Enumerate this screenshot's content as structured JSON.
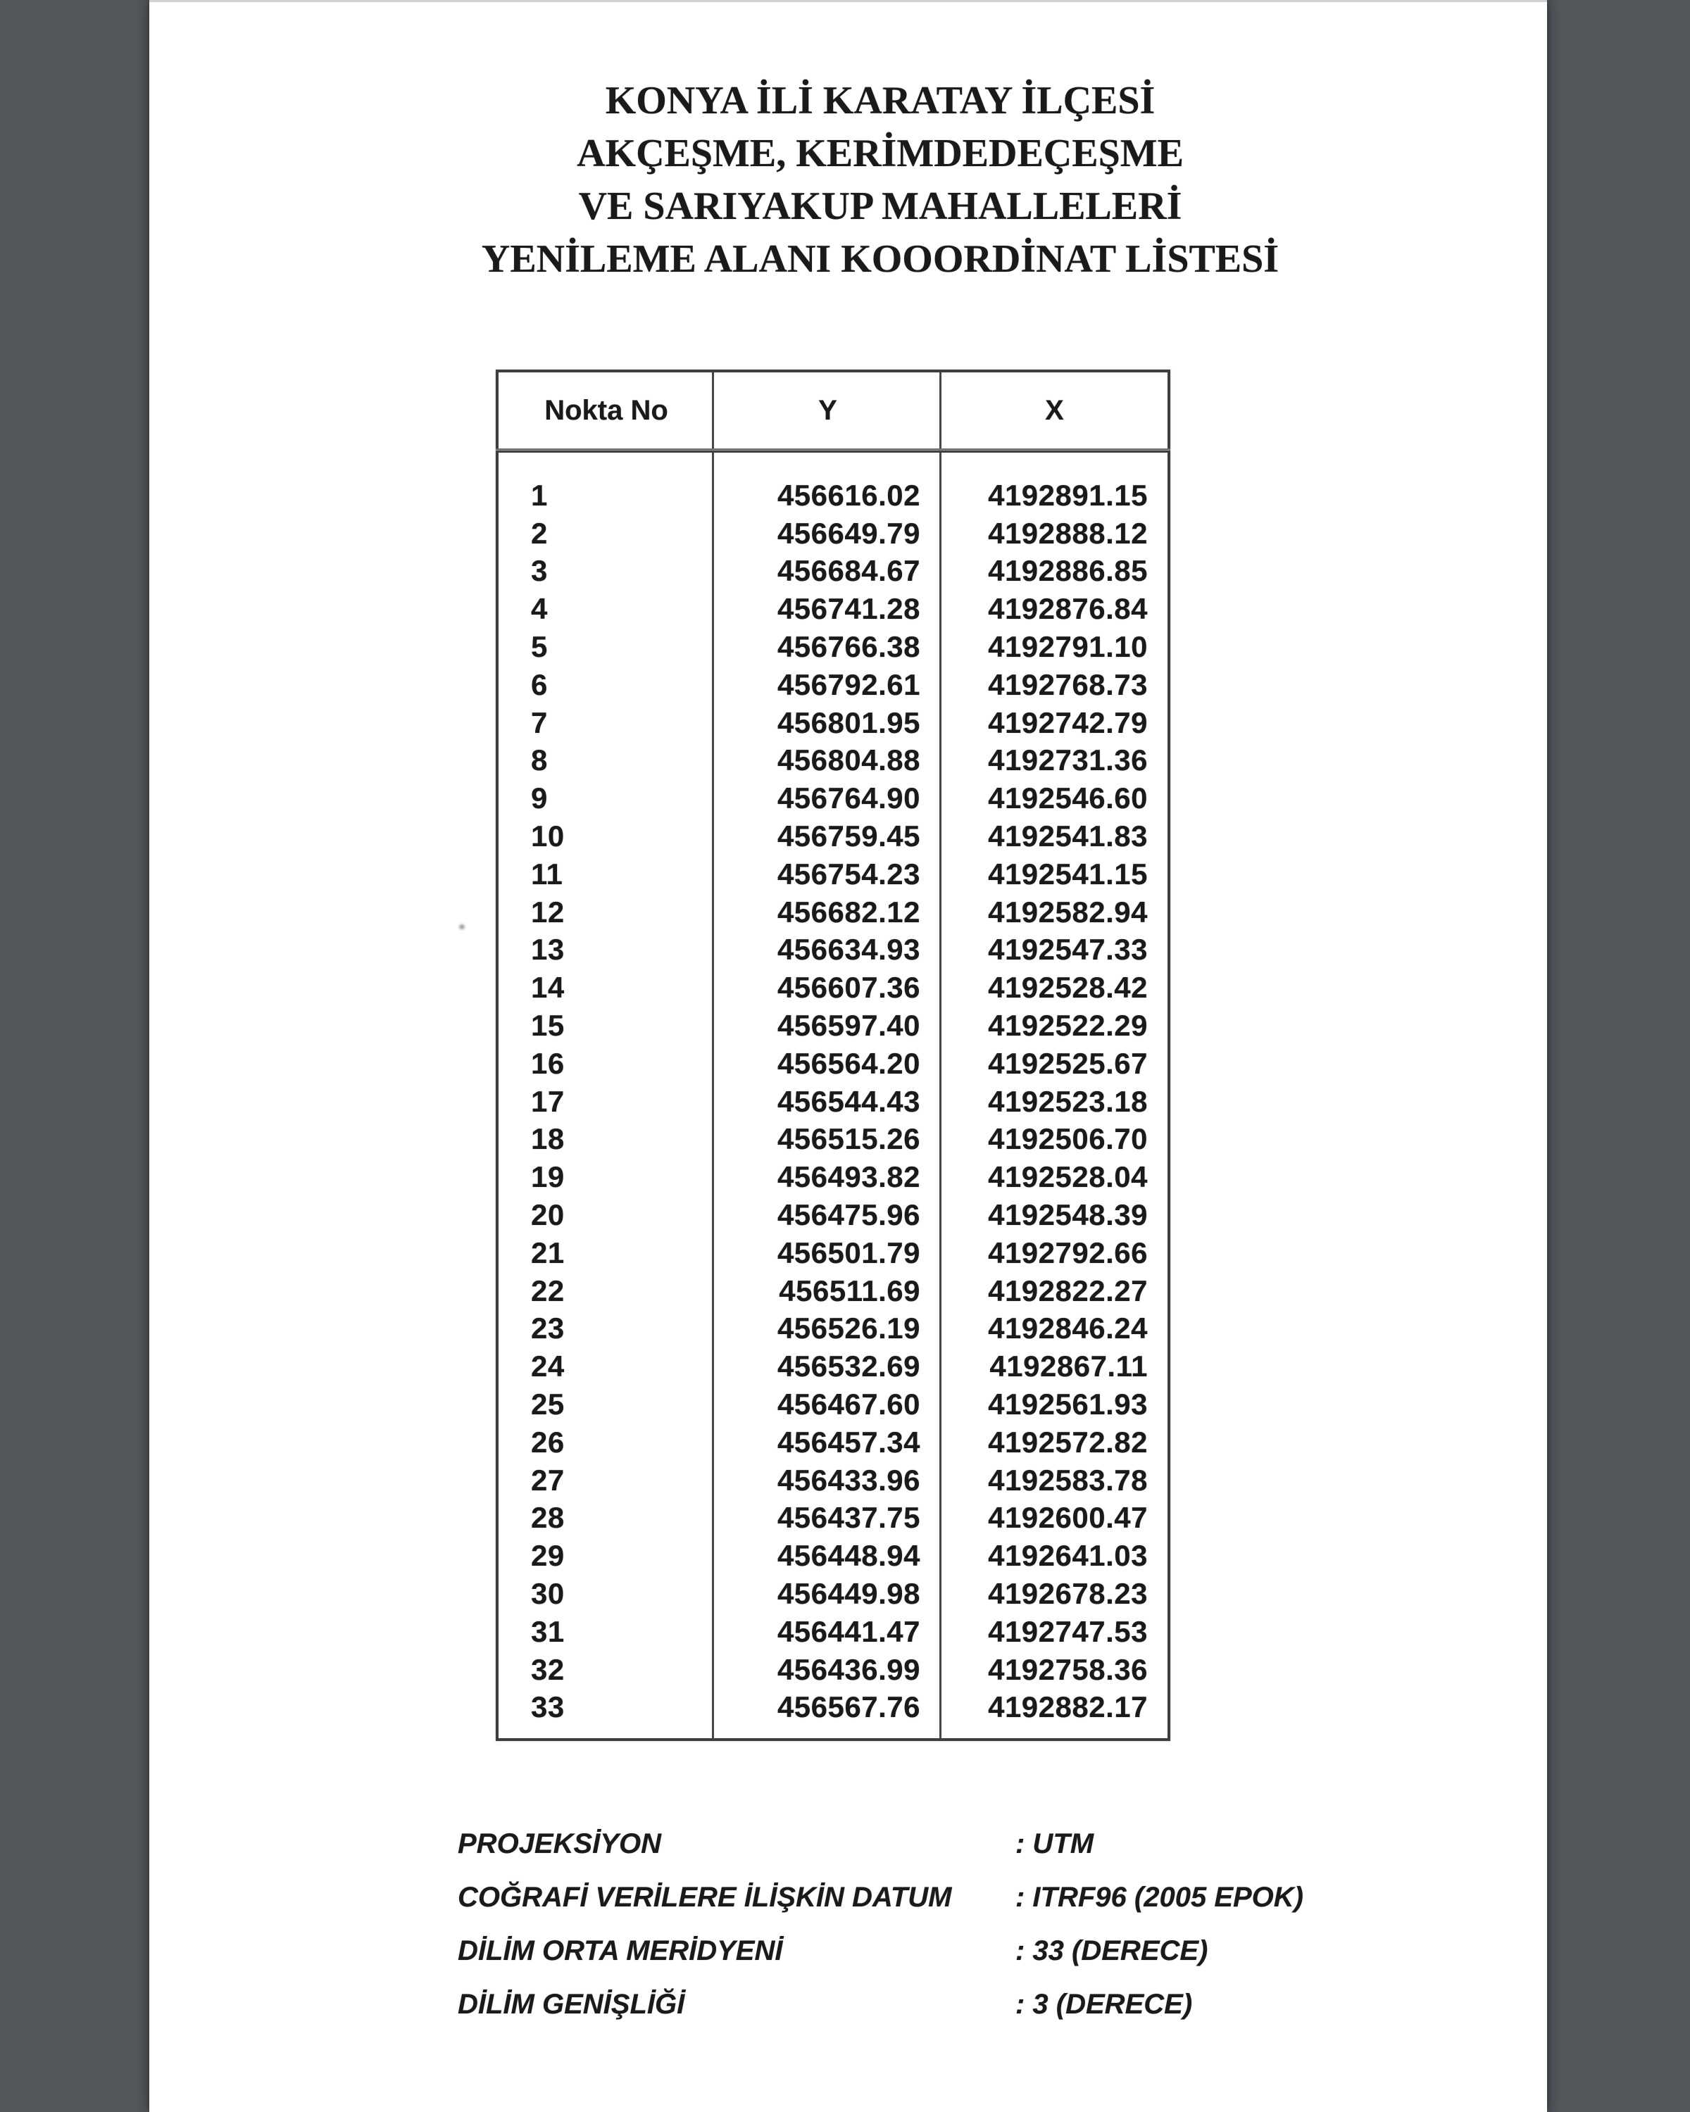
{
  "title": {
    "lines": [
      "KONYA İLİ KARATAY İLÇESİ",
      "AKÇEŞME, KERİMDEDEÇEŞME",
      "VE SARIYAKUP MAHALLELERİ",
      "YENİLEME ALANI KOOORDİNAT LİSTESİ"
    ]
  },
  "table": {
    "headers": [
      "Nokta No",
      "Y",
      "X"
    ],
    "rows": [
      {
        "no": "1",
        "y": "456616.02",
        "x": "4192891.15"
      },
      {
        "no": "2",
        "y": "456649.79",
        "x": "4192888.12"
      },
      {
        "no": "3",
        "y": "456684.67",
        "x": "4192886.85"
      },
      {
        "no": "4",
        "y": "456741.28",
        "x": "4192876.84"
      },
      {
        "no": "5",
        "y": "456766.38",
        "x": "4192791.10"
      },
      {
        "no": "6",
        "y": "456792.61",
        "x": "4192768.73"
      },
      {
        "no": "7",
        "y": "456801.95",
        "x": "4192742.79"
      },
      {
        "no": "8",
        "y": "456804.88",
        "x": "4192731.36"
      },
      {
        "no": "9",
        "y": "456764.90",
        "x": "4192546.60"
      },
      {
        "no": "10",
        "y": "456759.45",
        "x": "4192541.83"
      },
      {
        "no": "11",
        "y": "456754.23",
        "x": "4192541.15"
      },
      {
        "no": "12",
        "y": "456682.12",
        "x": "4192582.94"
      },
      {
        "no": "13",
        "y": "456634.93",
        "x": "4192547.33"
      },
      {
        "no": "14",
        "y": "456607.36",
        "x": "4192528.42"
      },
      {
        "no": "15",
        "y": "456597.40",
        "x": "4192522.29"
      },
      {
        "no": "16",
        "y": "456564.20",
        "x": "4192525.67"
      },
      {
        "no": "17",
        "y": "456544.43",
        "x": "4192523.18"
      },
      {
        "no": "18",
        "y": "456515.26",
        "x": "4192506.70"
      },
      {
        "no": "19",
        "y": "456493.82",
        "x": "4192528.04"
      },
      {
        "no": "20",
        "y": "456475.96",
        "x": "4192548.39"
      },
      {
        "no": "21",
        "y": "456501.79",
        "x": "4192792.66"
      },
      {
        "no": "22",
        "y": "456511.69",
        "x": "4192822.27"
      },
      {
        "no": "23",
        "y": "456526.19",
        "x": "4192846.24"
      },
      {
        "no": "24",
        "y": "456532.69",
        "x": "4192867.11"
      },
      {
        "no": "25",
        "y": "456467.60",
        "x": "4192561.93"
      },
      {
        "no": "26",
        "y": "456457.34",
        "x": "4192572.82"
      },
      {
        "no": "27",
        "y": "456433.96",
        "x": "4192583.78"
      },
      {
        "no": "28",
        "y": "456437.75",
        "x": "4192600.47"
      },
      {
        "no": "29",
        "y": "456448.94",
        "x": "4192641.03"
      },
      {
        "no": "30",
        "y": "456449.98",
        "x": "4192678.23"
      },
      {
        "no": "31",
        "y": "456441.47",
        "x": "4192747.53"
      },
      {
        "no": "32",
        "y": "456436.99",
        "x": "4192758.36"
      },
      {
        "no": "33",
        "y": "456567.76",
        "x": "4192882.17"
      }
    ]
  },
  "footer": {
    "items": [
      {
        "label": "PROJEKSİYON",
        "value": ": UTM"
      },
      {
        "label": "COĞRAFİ VERİLERE İLİŞKİN DATUM",
        "value": ": ITRF96 (2005 EPOK)"
      },
      {
        "label": "DİLİM ORTA MERİDYENİ",
        "value": ": 33 (DERECE)"
      },
      {
        "label": "DİLİM GENİŞLİĞİ",
        "value": ": 3 (DERECE)"
      }
    ]
  },
  "colors": {
    "backdrop": "#53575b",
    "paper": "#ffffff",
    "ink": "#1a1a1a",
    "table_border": "#3e3e3e"
  }
}
